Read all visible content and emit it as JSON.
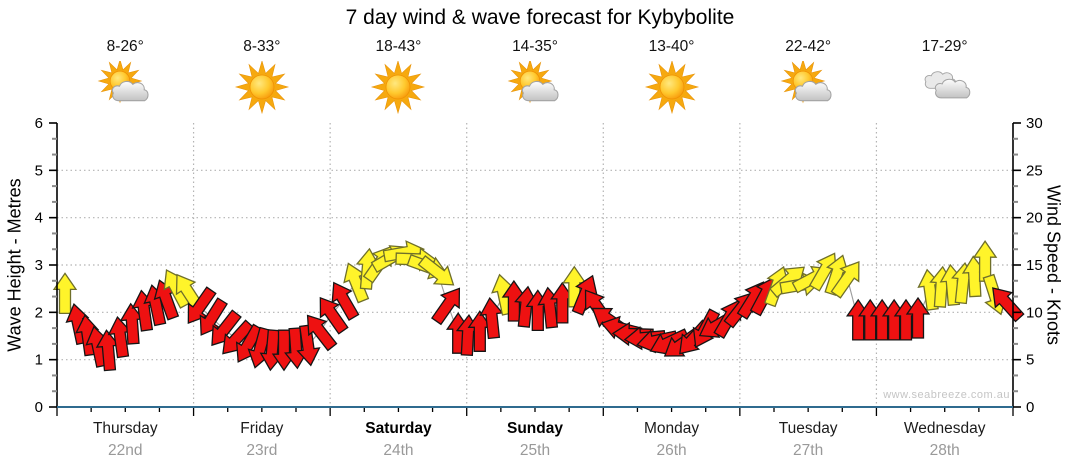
{
  "title": "7 day wind & wave forecast for Kybybolite",
  "watermark": "www.seabreeze.com.au",
  "days": [
    {
      "name": "Thursday",
      "date": "22nd",
      "temp": "8-26°",
      "icon": "partly-cloudy",
      "bold": false
    },
    {
      "name": "Friday",
      "date": "23rd",
      "temp": "8-33°",
      "icon": "sunny",
      "bold": false
    },
    {
      "name": "Saturday",
      "date": "24th",
      "temp": "18-43°",
      "icon": "sunny",
      "bold": true
    },
    {
      "name": "Sunday",
      "date": "25th",
      "temp": "14-35°",
      "icon": "partly-cloudy",
      "bold": true
    },
    {
      "name": "Monday",
      "date": "26th",
      "temp": "13-40°",
      "icon": "sunny",
      "bold": false
    },
    {
      "name": "Tuesday",
      "date": "27th",
      "temp": "22-42°",
      "icon": "partly-cloudy",
      "bold": false
    },
    {
      "name": "Wednesday",
      "date": "28th",
      "temp": "17-29°",
      "icon": "cloudy",
      "bold": false
    }
  ],
  "chart_data": {
    "type": "scatter",
    "subtype": "wind-direction-arrows",
    "days_shown": 7,
    "left_axis": {
      "label": "Wave Height - Metres",
      "ticks": [
        0,
        1,
        2,
        3,
        4,
        5,
        6
      ],
      "range": [
        0,
        6
      ]
    },
    "right_axis": {
      "label": "Wind Speed - Knots",
      "ticks": [
        0,
        5,
        10,
        15,
        20,
        25,
        30
      ],
      "range": [
        0,
        30
      ]
    },
    "gridlines": {
      "horizontal_knots": [
        5,
        10,
        15,
        20,
        25
      ],
      "vertical": "day-boundaries"
    },
    "wave_line": {
      "constant_m": 0
    },
    "arrow_format": [
      "hour_of_week",
      "knots",
      "direction_deg_0_is_up",
      "color_key"
    ],
    "arrows": [
      [
        1.4,
        12.0,
        0,
        "y"
      ],
      [
        3.7,
        8.8,
        -12,
        "r"
      ],
      [
        5.4,
        7.6,
        -8,
        "r"
      ],
      [
        7.2,
        6.4,
        -12,
        "r"
      ],
      [
        9.0,
        6.0,
        -5,
        "r"
      ],
      [
        11.1,
        7.4,
        -8,
        "r"
      ],
      [
        13.2,
        8.8,
        -4,
        "r"
      ],
      [
        15.3,
        10.2,
        -8,
        "r"
      ],
      [
        17.4,
        10.8,
        -12,
        "r"
      ],
      [
        19.2,
        11.4,
        -20,
        "r"
      ],
      [
        20.9,
        12.6,
        -28,
        "y"
      ],
      [
        23.0,
        12.2,
        -33,
        "y"
      ],
      [
        25.1,
        10.6,
        215,
        "r"
      ],
      [
        27.2,
        9.4,
        212,
        "r"
      ],
      [
        29.4,
        8.2,
        218,
        "r"
      ],
      [
        31.5,
        7.2,
        222,
        "r"
      ],
      [
        33.6,
        6.6,
        210,
        "r"
      ],
      [
        35.7,
        6.2,
        195,
        "r"
      ],
      [
        37.8,
        6.0,
        185,
        "r"
      ],
      [
        39.9,
        6.0,
        180,
        "r"
      ],
      [
        42.0,
        6.2,
        176,
        "r"
      ],
      [
        44.1,
        6.5,
        172,
        "r"
      ],
      [
        46.2,
        8.0,
        -38,
        "r"
      ],
      [
        48.3,
        9.8,
        -35,
        "r"
      ],
      [
        50.4,
        11.3,
        -30,
        "r"
      ],
      [
        52.5,
        13.2,
        -22,
        "y"
      ],
      [
        54.6,
        14.6,
        5,
        "y"
      ],
      [
        56.7,
        15.2,
        35,
        "y"
      ],
      [
        58.8,
        15.8,
        60,
        "y"
      ],
      [
        61.0,
        16.3,
        80,
        "y"
      ],
      [
        63.1,
        15.6,
        92,
        "y"
      ],
      [
        65.2,
        14.8,
        110,
        "y"
      ],
      [
        66.9,
        14.2,
        128,
        "y"
      ],
      [
        68.7,
        10.8,
        35,
        "r"
      ],
      [
        70.5,
        7.8,
        0,
        "r"
      ],
      [
        72.2,
        7.6,
        3,
        "r"
      ],
      [
        74.3,
        8.0,
        0,
        "r"
      ],
      [
        76.4,
        9.4,
        -6,
        "r"
      ],
      [
        78.5,
        11.9,
        -12,
        "y"
      ],
      [
        80.3,
        11.2,
        0,
        "r"
      ],
      [
        82.4,
        10.6,
        6,
        "r"
      ],
      [
        84.5,
        10.2,
        0,
        "r"
      ],
      [
        86.6,
        10.5,
        -6,
        "r"
      ],
      [
        88.8,
        11.0,
        0,
        "r"
      ],
      [
        90.9,
        12.7,
        0,
        "y"
      ],
      [
        92.8,
        11.9,
        22,
        "r"
      ],
      [
        94.9,
        10.6,
        -35,
        "r"
      ],
      [
        97.0,
        9.2,
        -55,
        "r"
      ],
      [
        99.1,
        8.3,
        -75,
        "r"
      ],
      [
        101.2,
        7.7,
        -88,
        "r"
      ],
      [
        103.3,
        7.3,
        -95,
        "r"
      ],
      [
        105.4,
        7.0,
        -102,
        "r"
      ],
      [
        107.5,
        6.8,
        -115,
        "r"
      ],
      [
        109.7,
        6.6,
        -125,
        "r"
      ],
      [
        111.8,
        7.2,
        -138,
        "r"
      ],
      [
        113.9,
        8.2,
        208,
        "r"
      ],
      [
        116.0,
        8.6,
        -120,
        "r"
      ],
      [
        118.1,
        9.4,
        30,
        "r"
      ],
      [
        120.2,
        10.4,
        38,
        "r"
      ],
      [
        122.3,
        11.4,
        32,
        "r"
      ],
      [
        124.4,
        11.8,
        28,
        "r"
      ],
      [
        126.5,
        12.8,
        20,
        "y"
      ],
      [
        128.6,
        13.4,
        50,
        "y"
      ],
      [
        130.7,
        12.9,
        80,
        "y"
      ],
      [
        132.8,
        13.6,
        62,
        "y"
      ],
      [
        134.9,
        14.4,
        30,
        "y"
      ],
      [
        137.0,
        14.0,
        18,
        "y"
      ],
      [
        138.9,
        13.6,
        35,
        "y"
      ],
      [
        140.8,
        9.2,
        0,
        "r"
      ],
      [
        142.9,
        9.2,
        0,
        "r"
      ],
      [
        145.0,
        9.2,
        0,
        "r"
      ],
      [
        147.1,
        9.2,
        0,
        "r"
      ],
      [
        149.2,
        9.2,
        0,
        "r"
      ],
      [
        151.3,
        9.4,
        0,
        "r"
      ],
      [
        153.4,
        12.4,
        -8,
        "y"
      ],
      [
        155.4,
        12.7,
        4,
        "y"
      ],
      [
        157.3,
        12.9,
        -5,
        "y"
      ],
      [
        159.2,
        13.1,
        6,
        "y"
      ],
      [
        161.2,
        13.8,
        -3,
        "y"
      ],
      [
        163.1,
        15.4,
        0,
        "y"
      ],
      [
        164.8,
        11.8,
        162,
        "y"
      ],
      [
        166.8,
        11.0,
        -42,
        "r"
      ]
    ],
    "colors": {
      "r": "#ee1111",
      "r_outline": "#151515",
      "y": "#fff42a",
      "y_outline": "#6f6f2a",
      "wave_line": "#2f6b8f",
      "grid": "#b3b3b3",
      "connector": "#9b9b9b",
      "axis": "#000000",
      "minor_tick": "#8a8a8a",
      "date_text": "#999999",
      "watermark_text": "#c5c5c5"
    }
  }
}
